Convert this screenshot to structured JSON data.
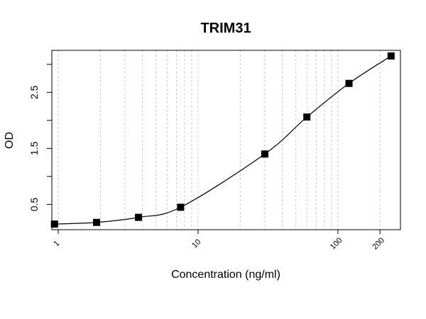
{
  "chart_data": {
    "type": "scatter",
    "title": "TRIM31",
    "xlabel": "Concentration (ng/ml)",
    "ylabel": "OD",
    "x_scale": "log",
    "xlim": [
      0.9,
      280
    ],
    "ylim": [
      0.05,
      3.25
    ],
    "x_ticks": [
      {
        "value": 1,
        "label": "1"
      },
      {
        "value": 10,
        "label": "10"
      },
      {
        "value": 100,
        "label": "100"
      },
      {
        "value": 200,
        "label": "200"
      }
    ],
    "y_ticks": [
      {
        "value": 0.5,
        "label": "0.5"
      },
      {
        "value": 1.5,
        "label": "1.5"
      },
      {
        "value": 2.5,
        "label": "2.5"
      }
    ],
    "y_minor_ticks": [
      1.0,
      2.0,
      3.0
    ],
    "grid": "vertical dotted at log decades",
    "series": [
      {
        "points": [
          {
            "x": 0.94,
            "y": 0.15
          },
          {
            "x": 1.88,
            "y": 0.18
          },
          {
            "x": 3.75,
            "y": 0.27
          },
          {
            "x": 7.5,
            "y": 0.45
          },
          {
            "x": 30,
            "y": 1.4
          },
          {
            "x": 60,
            "y": 2.06
          },
          {
            "x": 120,
            "y": 2.66
          },
          {
            "x": 240,
            "y": 3.15
          }
        ],
        "fit": "4-parameter logistic curve"
      }
    ]
  }
}
